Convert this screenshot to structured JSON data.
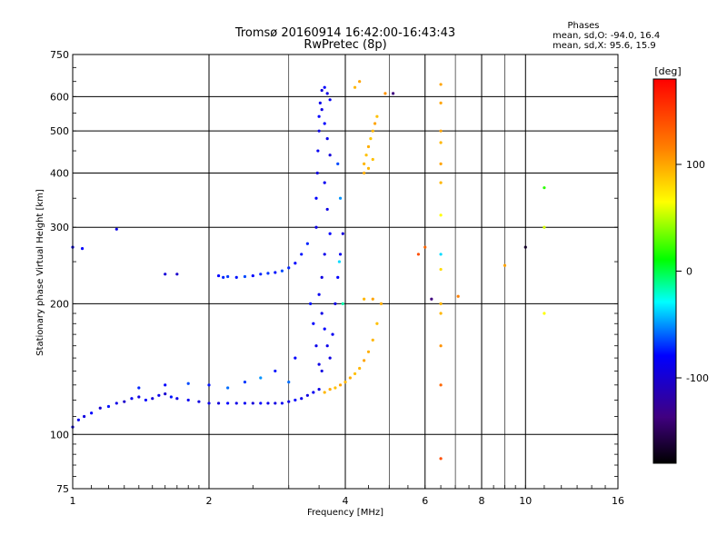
{
  "chart_data": {
    "type": "scatter",
    "title": "Tromsø 20160914 16:42:00-16:43:43",
    "subtitle": "RwPretec (8p)",
    "xlabel": "Frequency [MHz]",
    "ylabel": "Stationary phase Virtual Height [km]",
    "x_scale": "log",
    "y_scale": "log",
    "xlim": [
      1,
      16
    ],
    "ylim": [
      75,
      750
    ],
    "x_ticks": [
      1,
      2,
      4,
      6,
      8,
      10,
      16
    ],
    "y_ticks": [
      75,
      100,
      200,
      300,
      400,
      500,
      600,
      750
    ],
    "grid": true,
    "stats": {
      "header": "Phases",
      "line_o": "mean, sd,O: -94.0, 16.4",
      "line_x": "mean, sd,X:  95.6, 15.9"
    },
    "colorbar": {
      "label": "[deg]",
      "range": [
        -180,
        180
      ],
      "ticks": [
        100,
        0,
        -100
      ],
      "colors": [
        "#ff0000",
        "#ff8000",
        "#ffff00",
        "#00ff00",
        "#00ffff",
        "#0000ff",
        "#400080",
        "#000000"
      ]
    },
    "series": [
      {
        "points": [
          [
            1.0,
            104,
            -110
          ],
          [
            1.03,
            108,
            -105
          ],
          [
            1.06,
            110,
            -112
          ],
          [
            1.1,
            112,
            -100
          ],
          [
            1.15,
            115,
            -118
          ],
          [
            1.2,
            116,
            -95
          ],
          [
            1.25,
            118,
            -110
          ],
          [
            1.3,
            119,
            -120
          ],
          [
            1.35,
            121,
            -105
          ],
          [
            1.4,
            122,
            -112
          ],
          [
            1.45,
            120,
            -100
          ],
          [
            1.5,
            121,
            -115
          ],
          [
            1.55,
            123,
            -108
          ],
          [
            1.6,
            124,
            -118
          ],
          [
            1.65,
            122,
            -95
          ],
          [
            1.7,
            121,
            -110
          ],
          [
            1.8,
            120,
            -105
          ],
          [
            1.9,
            119,
            -112
          ],
          [
            2.0,
            118,
            -108
          ],
          [
            2.1,
            118,
            -115
          ],
          [
            2.2,
            118,
            -100
          ],
          [
            2.3,
            118,
            -110
          ],
          [
            2.4,
            118,
            -105
          ],
          [
            2.5,
            118,
            -115
          ],
          [
            2.6,
            118,
            -100
          ],
          [
            2.7,
            118,
            -108
          ],
          [
            2.8,
            118,
            -112
          ],
          [
            2.9,
            118,
            -105
          ],
          [
            3.0,
            119,
            -110
          ],
          [
            3.1,
            120,
            -100
          ],
          [
            3.2,
            121,
            -108
          ],
          [
            3.3,
            123,
            -112
          ],
          [
            3.4,
            125,
            -105
          ],
          [
            3.5,
            127,
            -110
          ],
          [
            1.4,
            128,
            -90
          ],
          [
            1.6,
            130,
            -100
          ],
          [
            1.8,
            131,
            -80
          ],
          [
            2.0,
            130,
            -95
          ],
          [
            2.2,
            128,
            -70
          ],
          [
            2.4,
            132,
            -85
          ],
          [
            2.6,
            135,
            -60
          ],
          [
            2.8,
            140,
            -95
          ],
          [
            3.0,
            132,
            -70
          ],
          [
            3.1,
            150,
            -100
          ],
          [
            2.1,
            232,
            -100
          ],
          [
            2.15,
            230,
            -90
          ],
          [
            2.2,
            231,
            -85
          ],
          [
            2.3,
            230,
            -95
          ],
          [
            2.4,
            231,
            -80
          ],
          [
            2.5,
            232,
            -100
          ],
          [
            2.6,
            234,
            -90
          ],
          [
            2.7,
            235,
            -85
          ],
          [
            2.8,
            236,
            -95
          ],
          [
            2.9,
            238,
            -80
          ],
          [
            3.0,
            242,
            -90
          ],
          [
            3.1,
            248,
            -100
          ],
          [
            3.2,
            260,
            -95
          ],
          [
            3.3,
            275,
            -90
          ],
          [
            1.6,
            234,
            -115
          ],
          [
            1.7,
            234,
            -120
          ],
          [
            1.0,
            270,
            -105
          ],
          [
            1.05,
            268,
            -100
          ],
          [
            1.25,
            297,
            -110
          ],
          [
            3.45,
            300,
            -110
          ],
          [
            3.45,
            350,
            -100
          ],
          [
            3.47,
            400,
            -112
          ],
          [
            3.48,
            450,
            -105
          ],
          [
            3.5,
            500,
            -110
          ],
          [
            3.5,
            540,
            -100
          ],
          [
            3.52,
            580,
            -108
          ],
          [
            3.55,
            620,
            -115
          ],
          [
            3.6,
            630,
            -100
          ],
          [
            3.65,
            610,
            -110
          ],
          [
            3.7,
            590,
            -105
          ],
          [
            3.55,
            560,
            -112
          ],
          [
            3.6,
            520,
            -100
          ],
          [
            3.65,
            480,
            -108
          ],
          [
            3.7,
            440,
            -115
          ],
          [
            3.6,
            380,
            -105
          ],
          [
            3.65,
            330,
            -110
          ],
          [
            3.7,
            290,
            -100
          ],
          [
            3.6,
            260,
            -108
          ],
          [
            3.55,
            230,
            -112
          ],
          [
            3.5,
            210,
            -105
          ],
          [
            3.55,
            190,
            -110
          ],
          [
            3.6,
            175,
            -100
          ],
          [
            3.65,
            160,
            -108
          ],
          [
            3.7,
            150,
            -112
          ],
          [
            3.75,
            170,
            -105
          ],
          [
            3.8,
            200,
            -110
          ],
          [
            3.85,
            230,
            -100
          ],
          [
            3.9,
            260,
            -105
          ],
          [
            3.95,
            290,
            -115
          ],
          [
            3.4,
            180,
            -100
          ],
          [
            3.45,
            160,
            -108
          ],
          [
            3.5,
            145,
            -110
          ],
          [
            3.55,
            140,
            -112
          ],
          [
            3.35,
            200,
            -95
          ],
          [
            3.85,
            420,
            -80
          ],
          [
            3.9,
            350,
            -60
          ],
          [
            3.88,
            250,
            -40
          ],
          [
            3.95,
            200,
            -20
          ],
          [
            4.4,
            420,
            100
          ],
          [
            4.45,
            440,
            95
          ],
          [
            4.5,
            460,
            105
          ],
          [
            4.55,
            480,
            90
          ],
          [
            4.6,
            500,
            100
          ],
          [
            4.65,
            520,
            110
          ],
          [
            4.7,
            540,
            95
          ],
          [
            4.4,
            400,
            105
          ],
          [
            4.5,
            410,
            100
          ],
          [
            4.6,
            430,
            95
          ],
          [
            4.3,
            650,
            110
          ],
          [
            4.2,
            630,
            100
          ],
          [
            4.9,
            610,
            120
          ],
          [
            5.1,
            610,
            -150
          ],
          [
            3.6,
            125,
            100
          ],
          [
            3.7,
            127,
            105
          ],
          [
            3.8,
            128,
            95
          ],
          [
            3.9,
            130,
            110
          ],
          [
            4.0,
            132,
            100
          ],
          [
            4.1,
            135,
            105
          ],
          [
            4.2,
            138,
            95
          ],
          [
            4.3,
            142,
            100
          ],
          [
            4.4,
            148,
            110
          ],
          [
            4.5,
            155,
            105
          ],
          [
            4.6,
            165,
            100
          ],
          [
            4.7,
            180,
            95
          ],
          [
            4.8,
            200,
            105
          ],
          [
            4.6,
            205,
            110
          ],
          [
            4.4,
            205,
            100
          ],
          [
            6.5,
            640,
            110
          ],
          [
            6.5,
            580,
            110
          ],
          [
            6.5,
            500,
            110
          ],
          [
            6.5,
            470,
            100
          ],
          [
            6.5,
            420,
            110
          ],
          [
            6.5,
            380,
            100
          ],
          [
            6.5,
            320,
            60
          ],
          [
            6.5,
            260,
            -40
          ],
          [
            6.5,
            240,
            80
          ],
          [
            6.5,
            200,
            100
          ],
          [
            6.5,
            190,
            100
          ],
          [
            6.5,
            160,
            120
          ],
          [
            6.5,
            130,
            140
          ],
          [
            6.5,
            88,
            150
          ],
          [
            6.2,
            205,
            -150
          ],
          [
            7.1,
            208,
            130
          ],
          [
            9.0,
            245,
            110
          ],
          [
            10.0,
            270,
            -170
          ],
          [
            11.0,
            370,
            10
          ],
          [
            11.0,
            300,
            50
          ],
          [
            11.0,
            190,
            60
          ],
          [
            5.8,
            260,
            150
          ],
          [
            6.0,
            270,
            140
          ]
        ]
      }
    ]
  }
}
